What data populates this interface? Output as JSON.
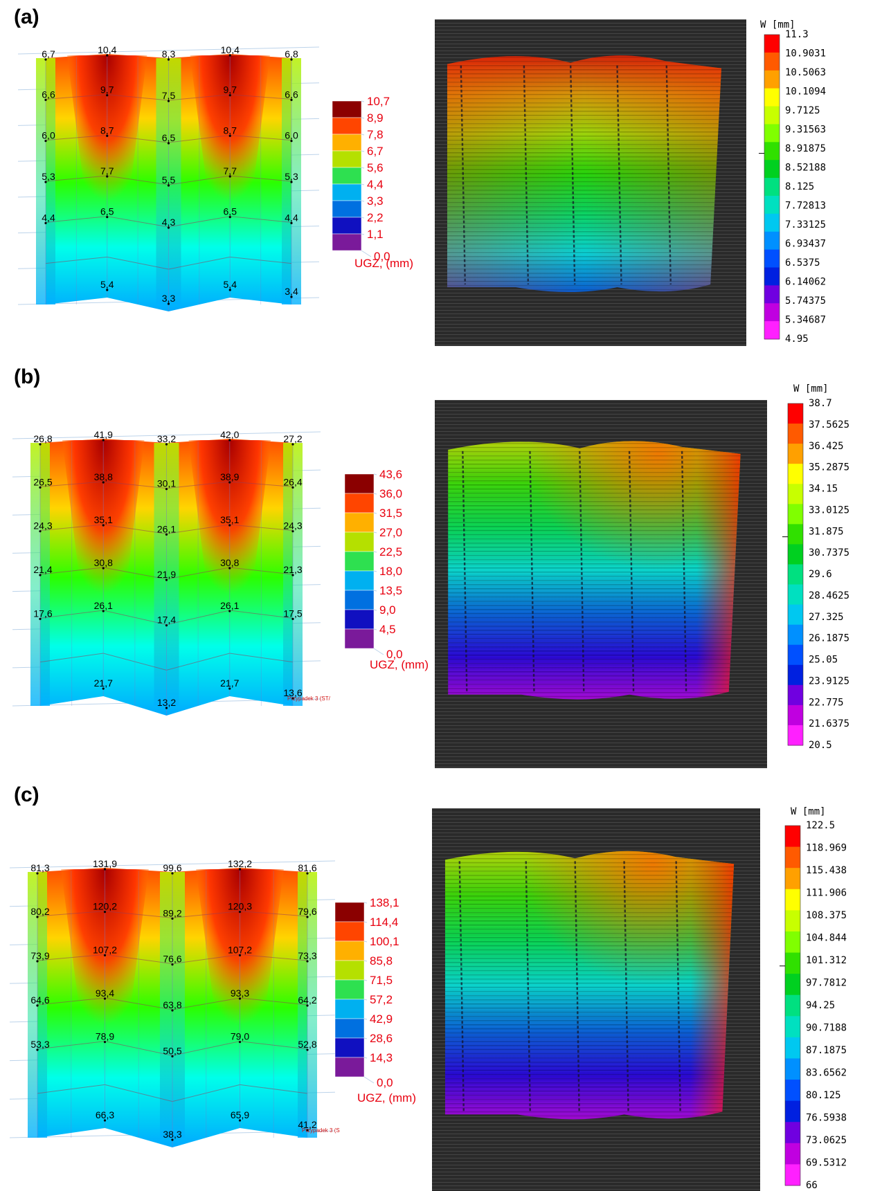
{
  "panels": [
    {
      "label": "(a)",
      "fem": {
        "values": [
          [
            "6,7",
            "10,4",
            "8,3",
            "10,4",
            "6,8"
          ],
          [
            "6,6",
            "9,7",
            "7,5",
            "9,7",
            "6,6"
          ],
          [
            "6,0",
            "8,7",
            "6,5",
            "8,7",
            "6,0"
          ],
          [
            "5,3",
            "7,7",
            "5,5",
            "7,7",
            "5,3"
          ],
          [
            "4,4",
            "6,5",
            "4,3",
            "6,5",
            "4,4"
          ],
          [
            "",
            "5,4",
            "3,3",
            "5,4",
            "3,4"
          ]
        ],
        "legend": [
          "10,7",
          "8,9",
          "7,8",
          "6,7",
          "5,6",
          "4,4",
          "3,3",
          "2,2",
          "1,1",
          "0,0"
        ],
        "unit": "UGZ, (mm)",
        "note": ""
      },
      "dic": {
        "title": "W [mm]",
        "legend": [
          "11.3",
          "10.9031",
          "10.5063",
          "10.1094",
          "9.7125",
          "9.31563",
          "8.91875",
          "8.52188",
          "8.125",
          "7.72813",
          "7.33125",
          "6.93437",
          "6.5375",
          "6.14062",
          "5.74375",
          "5.34687",
          "4.95"
        ]
      }
    },
    {
      "label": "(b)",
      "fem": {
        "values": [
          [
            "26,8",
            "41,9",
            "33,2",
            "42,0",
            "27,2"
          ],
          [
            "26,5",
            "38,8",
            "30,1",
            "38,9",
            "26,4"
          ],
          [
            "24,3",
            "35,1",
            "26,1",
            "35,1",
            "24,3"
          ],
          [
            "21,4",
            "30,8",
            "21,9",
            "30,8",
            "21,3"
          ],
          [
            "17,6",
            "26,1",
            "17,4",
            "26,1",
            "17,5"
          ],
          [
            "",
            "21,7",
            "13,2",
            "21,7",
            "13,6"
          ]
        ],
        "legend": [
          "43,6",
          "36,0",
          "31,5",
          "27,0",
          "22,5",
          "18,0",
          "13,5",
          "9,0",
          "4,5",
          "0,0"
        ],
        "unit": "UGZ, (mm)",
        "note": "Przypadek 3 (ST/"
      },
      "dic": {
        "title": "W [mm]",
        "legend": [
          "38.7",
          "37.5625",
          "36.425",
          "35.2875",
          "34.15",
          "33.0125",
          "31.875",
          "30.7375",
          "29.6",
          "28.4625",
          "27.325",
          "26.1875",
          "25.05",
          "23.9125",
          "22.775",
          "21.6375",
          "20.5"
        ]
      }
    },
    {
      "label": "(c)",
      "fem": {
        "values": [
          [
            "81,3",
            "131,9",
            "99,6",
            "132,2",
            "81,6"
          ],
          [
            "80,2",
            "120,2",
            "89,2",
            "120,3",
            "79,6"
          ],
          [
            "73,9",
            "107,2",
            "76,6",
            "107,2",
            "73,3"
          ],
          [
            "64,6",
            "93,4",
            "63,8",
            "93,3",
            "64,2"
          ],
          [
            "53,3",
            "78,9",
            "50,5",
            "79,0",
            "52,8"
          ],
          [
            "",
            "66,3",
            "38,3",
            "65,9",
            "41,2"
          ]
        ],
        "legend": [
          "138,1",
          "114,4",
          "100,1",
          "85,8",
          "71,5",
          "57,2",
          "42,9",
          "28,6",
          "14,3",
          "0,0"
        ],
        "unit": "UGZ, (mm)",
        "note": "Przypadek 3 (S"
      },
      "dic": {
        "title": "W [mm]",
        "legend": [
          "122.5",
          "118.969",
          "115.438",
          "111.906",
          "108.375",
          "104.844",
          "101.312",
          "97.7812",
          "94.25",
          "90.7188",
          "87.1875",
          "83.6562",
          "80.125",
          "76.5938",
          "73.0625",
          "69.5312",
          "66"
        ]
      }
    }
  ],
  "colors": {
    "fem_legend": [
      "#8b0000",
      "#ff4500",
      "#ffb000",
      "#b5e000",
      "#2ee050",
      "#00b0f0",
      "#0070e0",
      "#1010c0",
      "#7a1a9a"
    ],
    "dic_legend": [
      "#ff0000",
      "#ff5a00",
      "#ffa000",
      "#ffff00",
      "#c8ff00",
      "#80ff00",
      "#30e000",
      "#00d020",
      "#00e080",
      "#00e0c0",
      "#00c8f0",
      "#0090ff",
      "#0050ff",
      "#0020e0",
      "#7000e0",
      "#c000e0",
      "#ff20ff"
    ],
    "label_text": "#e8000f"
  }
}
